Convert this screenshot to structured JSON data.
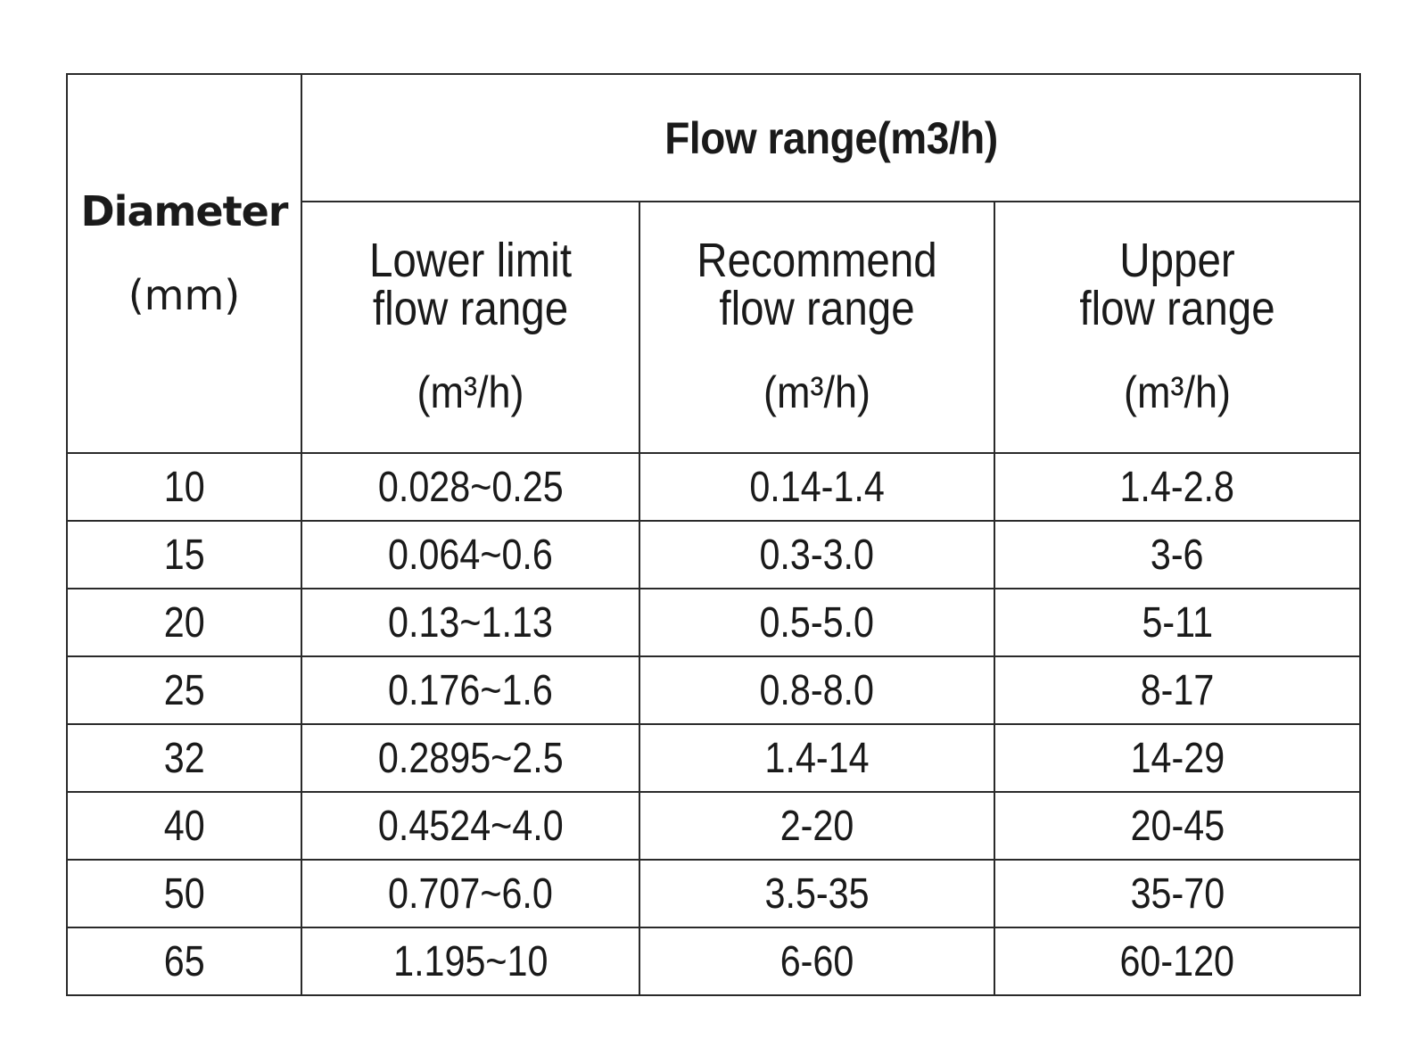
{
  "table": {
    "diameter_header": "Diameter",
    "diameter_unit": "(mm)",
    "group_header": "Flow range(m3/h)",
    "columns": [
      {
        "line1": "Lower limit",
        "line2": "flow range",
        "unit": "(m³/h)"
      },
      {
        "line1": "Recommend",
        "line2": "flow range",
        "unit": "(m³/h)"
      },
      {
        "line1": "Upper",
        "line2": "flow range",
        "unit": "(m³/h)"
      }
    ],
    "rows": [
      {
        "diameter": "10",
        "lower": "0.028~0.25",
        "recommend": "0.14-1.4",
        "upper": "1.4-2.8"
      },
      {
        "diameter": "15",
        "lower": "0.064~0.6",
        "recommend": "0.3-3.0",
        "upper": "3-6"
      },
      {
        "diameter": "20",
        "lower": "0.13~1.13",
        "recommend": "0.5-5.0",
        "upper": "5-11"
      },
      {
        "diameter": "25",
        "lower": "0.176~1.6",
        "recommend": "0.8-8.0",
        "upper": "8-17"
      },
      {
        "diameter": "32",
        "lower": "0.2895~2.5",
        "recommend": "1.4-14",
        "upper": "14-29"
      },
      {
        "diameter": "40",
        "lower": "0.4524~4.0",
        "recommend": "2-20",
        "upper": "20-45"
      },
      {
        "diameter": "50",
        "lower": "0.707~6.0",
        "recommend": "3.5-35",
        "upper": "35-70"
      },
      {
        "diameter": "65",
        "lower": "1.195~10",
        "recommend": "6-60",
        "upper": "60-120"
      }
    ]
  }
}
